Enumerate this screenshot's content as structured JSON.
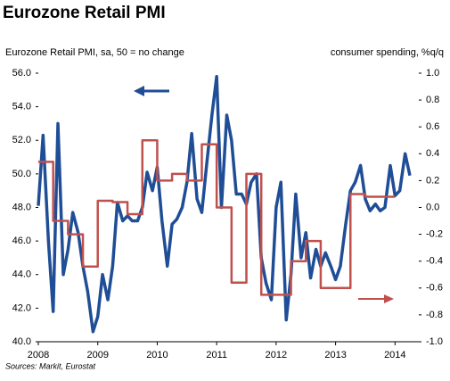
{
  "chart_data": {
    "type": "line",
    "title": "Eurozone Retail PMI",
    "y_label": "Eurozone Retail PMI, sa, 50 = no change",
    "y2_label": "consumer spending, %q/q",
    "source": "Sources: Markit, Eurostat",
    "xlim": [
      2008,
      2014.4
    ],
    "xticks": [
      2008,
      2009,
      2010,
      2011,
      2012,
      2013,
      2014
    ],
    "ylim": [
      40,
      56
    ],
    "yticks": [
      {
        "value": 40,
        "label": "40.0"
      },
      {
        "value": 42,
        "label": "42.0"
      },
      {
        "value": 44,
        "label": "44.0"
      },
      {
        "value": 46,
        "label": "46.0"
      },
      {
        "value": 48,
        "label": "48.0"
      },
      {
        "value": 50,
        "label": "50.0"
      },
      {
        "value": 52,
        "label": "52.0"
      },
      {
        "value": 54,
        "label": "54.0"
      },
      {
        "value": 56,
        "label": "56.0"
      }
    ],
    "y2lim": [
      -1,
      1
    ],
    "y2ticks": [
      {
        "value": -1,
        "label": "-1.0"
      },
      {
        "value": -0.8,
        "label": "-0.8"
      },
      {
        "value": -0.6,
        "label": "-0.6"
      },
      {
        "value": -0.4,
        "label": "-0.4"
      },
      {
        "value": -0.2,
        "label": "-0.2"
      },
      {
        "value": 0,
        "label": "0.0"
      },
      {
        "value": 0.2,
        "label": "0.2"
      },
      {
        "value": 0.4,
        "label": "0.4"
      },
      {
        "value": 0.6,
        "label": "0.6"
      },
      {
        "value": 0.8,
        "label": "0.8"
      },
      {
        "value": 1,
        "label": "1.0"
      }
    ],
    "series": [
      {
        "name": "Eurozone Retail PMI",
        "color": "#1f4e96",
        "axis": "y",
        "x": [
          2008,
          2008.08,
          2008.17,
          2008.25,
          2008.33,
          2008.42,
          2008.5,
          2008.58,
          2008.67,
          2008.75,
          2008.83,
          2008.92,
          2009,
          2009.08,
          2009.17,
          2009.25,
          2009.33,
          2009.42,
          2009.5,
          2009.58,
          2009.67,
          2009.75,
          2009.83,
          2009.92,
          2010,
          2010.08,
          2010.17,
          2010.25,
          2010.33,
          2010.42,
          2010.5,
          2010.58,
          2010.67,
          2010.75,
          2010.83,
          2010.92,
          2011,
          2011.08,
          2011.17,
          2011.25,
          2011.33,
          2011.42,
          2011.5,
          2011.58,
          2011.67,
          2011.75,
          2011.83,
          2011.92,
          2012,
          2012.08,
          2012.17,
          2012.25,
          2012.33,
          2012.42,
          2012.5,
          2012.58,
          2012.67,
          2012.75,
          2012.83,
          2012.92,
          2013,
          2013.08,
          2013.17,
          2013.25,
          2013.33,
          2013.42,
          2013.5,
          2013.58,
          2013.67,
          2013.75,
          2013.83,
          2013.92,
          2014,
          2014.08,
          2014.17,
          2014.25
        ],
        "values": [
          48.1,
          52.3,
          46.0,
          41.8,
          53.0,
          44.0,
          45.5,
          47.7,
          46.5,
          44.5,
          43.0,
          40.6,
          41.5,
          44.0,
          42.5,
          44.5,
          48.3,
          47.2,
          47.5,
          47.2,
          47.2,
          48.0,
          50.1,
          49.0,
          50.4,
          47.2,
          44.5,
          47.0,
          47.3,
          48.0,
          49.5,
          52.4,
          48.5,
          47.7,
          50.5,
          53.5,
          55.8,
          48.0,
          53.5,
          52.0,
          48.8,
          48.8,
          48.2,
          49.5,
          50.0,
          45.0,
          43.5,
          42.5,
          48.0,
          49.5,
          41.3,
          44.0,
          48.8,
          45.0,
          46.5,
          43.8,
          45.5,
          44.5,
          45.3,
          44.5,
          43.7,
          44.5,
          47.0,
          49.0,
          49.5,
          50.5,
          48.5,
          47.8,
          48.2,
          47.8,
          48.0,
          50.5,
          48.7,
          49.0,
          51.2,
          49.9
        ]
      },
      {
        "name": "consumer spending",
        "color": "#c0504d",
        "axis": "y2",
        "step": true,
        "x": [
          2008,
          2008.25,
          2008.5,
          2008.75,
          2009,
          2009.25,
          2009.5,
          2009.75,
          2010,
          2010.25,
          2010.5,
          2010.75,
          2011,
          2011.25,
          2011.5,
          2011.75,
          2012,
          2012.25,
          2012.5,
          2012.75,
          2013,
          2013.25,
          2013.5,
          2013.75,
          2014
        ],
        "values": [
          0.34,
          -0.1,
          -0.2,
          -0.44,
          0.05,
          0.04,
          -0.05,
          0.5,
          0.2,
          0.25,
          0.2,
          0.47,
          0.0,
          -0.56,
          0.25,
          -0.65,
          -0.65,
          -0.4,
          -0.25,
          -0.6,
          -0.6,
          0.1,
          0.08,
          0.08,
          null
        ]
      }
    ]
  }
}
